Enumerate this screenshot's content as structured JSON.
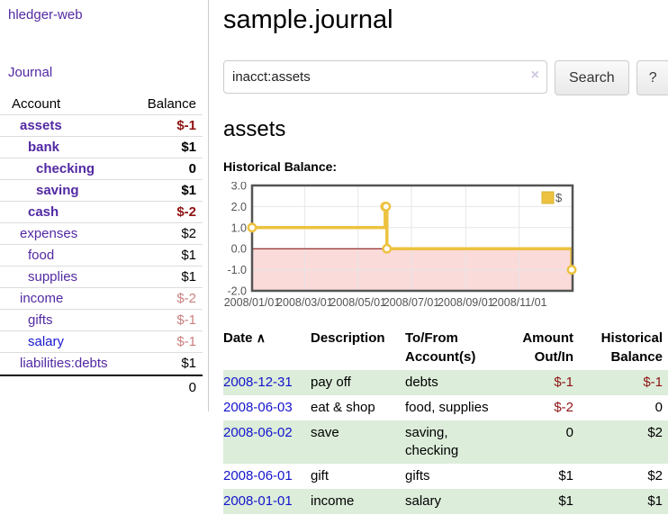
{
  "colors": {
    "link_purple": "#5229a3",
    "link_blue": "#1414cc",
    "negative_strong": "#8f1313",
    "negative_muted": "#c9807f",
    "row_shade_green": "#dcedda",
    "chart_series_gold": "#edc240",
    "chart_zero_line": "#800000",
    "chart_negative_fill": "#fbdada",
    "chart_border": "#545454"
  },
  "sidebar": {
    "app_title": "hledger-web",
    "journal_link": "Journal",
    "account_header": "Account",
    "balance_header": "Balance",
    "accounts": [
      {
        "name": "assets",
        "indent": 1,
        "bold": true,
        "link_color": "purple",
        "balance": "$-1",
        "balance_class": "neg-strong"
      },
      {
        "name": "bank",
        "indent": 2,
        "bold": true,
        "link_color": "purple",
        "balance": "$1",
        "balance_class": "b"
      },
      {
        "name": "checking",
        "indent": 3,
        "bold": true,
        "link_color": "purple",
        "balance": "0",
        "balance_class": "b"
      },
      {
        "name": "saving",
        "indent": 3,
        "bold": true,
        "link_color": "purple",
        "balance": "$1",
        "balance_class": "b"
      },
      {
        "name": "cash",
        "indent": 2,
        "bold": true,
        "link_color": "purple",
        "balance": "$-2",
        "balance_class": "neg-strong"
      },
      {
        "name": "expenses",
        "indent": 1,
        "bold": false,
        "link_color": "purple",
        "balance": "$2",
        "balance_class": ""
      },
      {
        "name": "food",
        "indent": 2,
        "bold": false,
        "link_color": "purple",
        "balance": "$1",
        "balance_class": ""
      },
      {
        "name": "supplies",
        "indent": 2,
        "bold": false,
        "link_color": "purple",
        "balance": "$1",
        "balance_class": ""
      },
      {
        "name": "income",
        "indent": 1,
        "bold": false,
        "link_color": "purple",
        "balance": "$-2",
        "balance_class": "neg-muted"
      },
      {
        "name": "gifts",
        "indent": 2,
        "bold": false,
        "link_color": "purple",
        "balance": "$-1",
        "balance_class": "neg-muted"
      },
      {
        "name": "salary",
        "indent": 2,
        "bold": false,
        "link_color": "blue",
        "balance": "$-1",
        "balance_class": "neg-muted"
      },
      {
        "name": "liabilities:debts",
        "indent": 1,
        "bold": false,
        "link_color": "purple",
        "balance": "$1",
        "balance_class": ""
      }
    ],
    "total": "0"
  },
  "header": {
    "title": "sample.journal"
  },
  "search": {
    "query": "inacct:assets",
    "clear_icon": "×",
    "button_label": "Search",
    "help_label": "?"
  },
  "account_page": {
    "heading": "assets",
    "chart_label": "Historical Balance:"
  },
  "chart_data": {
    "type": "line",
    "subtype": "step",
    "title": "Historical Balance",
    "series": [
      {
        "name": "$",
        "color": "#edc240",
        "points": [
          [
            "2008-01-01",
            1
          ],
          [
            "2008-06-01",
            2
          ],
          [
            "2008-06-02",
            2
          ],
          [
            "2008-06-03",
            0
          ],
          [
            "2008-12-31",
            -1
          ]
        ]
      }
    ],
    "x_range": [
      "2008-01-01",
      "2009-01-01"
    ],
    "x_ticks": [
      "2008/01/01",
      "2008/03/01",
      "2008/05/01",
      "2008/07/01",
      "2008/09/01",
      "2008/11/01"
    ],
    "y_ticks": [
      "3.0",
      "2.0",
      "1.0",
      "0.0",
      "-1.0",
      "-2.0"
    ],
    "ylim": [
      -2,
      3
    ],
    "grid": true,
    "legend": {
      "label": "$",
      "position": "top-right"
    }
  },
  "register": {
    "headers": {
      "date": "Date",
      "sort_icon": "∧",
      "description": "Description",
      "accounts_line1": "To/From",
      "accounts_line2": "Account(s)",
      "amount_line1": "Amount",
      "amount_line2": "Out/In",
      "balance_line1": "Historical",
      "balance_line2": "Balance"
    },
    "rows": [
      {
        "date": "2008-12-31",
        "description": "pay off",
        "accounts_lines": [
          "debts"
        ],
        "amount": "$-1",
        "amount_neg": true,
        "balance": "$-1",
        "balance_neg": true,
        "shaded": true
      },
      {
        "date": "2008-06-03",
        "description": "eat & shop",
        "accounts_lines": [
          "food, supplies"
        ],
        "amount": "$-2",
        "amount_neg": true,
        "balance": "0",
        "balance_neg": false,
        "shaded": false
      },
      {
        "date": "2008-06-02",
        "description": "save",
        "accounts_lines": [
          "saving,",
          "checking"
        ],
        "amount": "0",
        "amount_neg": false,
        "balance": "$2",
        "balance_neg": false,
        "shaded": true
      },
      {
        "date": "2008-06-01",
        "description": "gift",
        "accounts_lines": [
          "gifts"
        ],
        "amount": "$1",
        "amount_neg": false,
        "balance": "$2",
        "balance_neg": false,
        "shaded": false
      },
      {
        "date": "2008-01-01",
        "description": "income",
        "accounts_lines": [
          "salary"
        ],
        "amount": "$1",
        "amount_neg": false,
        "balance": "$1",
        "balance_neg": false,
        "shaded": true
      }
    ]
  }
}
